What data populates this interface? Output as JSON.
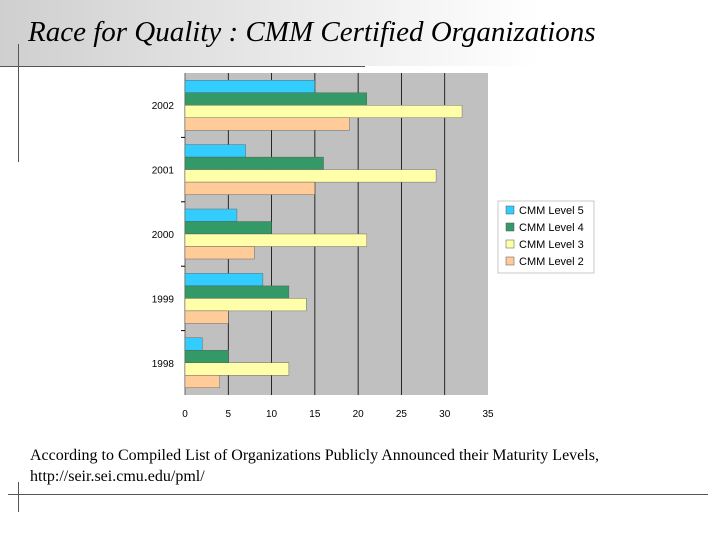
{
  "slide": {
    "title": "Race for Quality : CMM Certified Organizations",
    "caption_line1": "According to Compiled List of Organizations Publicly Announced their Maturity Levels,",
    "caption_line2": "http://seir.sei.cmu.edu/pml/"
  },
  "chart_data": {
    "type": "bar",
    "orientation": "horizontal",
    "categories": [
      "2002",
      "2001",
      "2000",
      "1999",
      "1998"
    ],
    "series": [
      {
        "name": "CMM Level 5",
        "color": "#33ccff",
        "values": [
          15,
          7,
          6,
          9,
          2
        ]
      },
      {
        "name": "CMM Level 4",
        "color": "#339966",
        "values": [
          21,
          16,
          10,
          12,
          5
        ]
      },
      {
        "name": "CMM Level 3",
        "color": "#ffffaa",
        "values": [
          32,
          29,
          21,
          14,
          12
        ]
      },
      {
        "name": "CMM Level 2",
        "color": "#ffcc99",
        "values": [
          19,
          15,
          8,
          5,
          4
        ]
      }
    ],
    "xlim": [
      0,
      35
    ],
    "xticks": [
      "0",
      "5",
      "10",
      "15",
      "20",
      "25",
      "30",
      "35"
    ],
    "plot_background": "#c0c0c0",
    "grid": "vertical",
    "legend_position": "right"
  }
}
